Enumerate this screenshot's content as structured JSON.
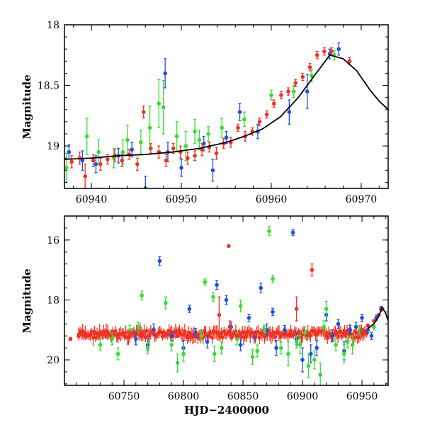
{
  "chart_data": [
    {
      "type": "scatter",
      "panel": "top",
      "title": "",
      "xlabel": "",
      "ylabel": "Magnitude",
      "xlim": [
        60937,
        60973
      ],
      "ylim": [
        19.35,
        18.0
      ],
      "y_inverted": true,
      "xticks": [
        "60940",
        "60950",
        "60960",
        "60970"
      ],
      "xtick_values": [
        60940,
        60950,
        60960,
        60970
      ],
      "yticks": [
        "18",
        "18.5",
        "19"
      ],
      "ytick_values": [
        18.0,
        18.5,
        19.0
      ],
      "model_curve": {
        "color": "#000000",
        "x": [
          60937,
          60940,
          60943,
          60946,
          60949,
          60952,
          60955,
          60957,
          60959,
          60961,
          60963,
          60965,
          60966.5,
          60968,
          60969.5,
          60971,
          60972,
          60973
        ],
        "y": [
          19.11,
          19.1,
          19.08,
          19.07,
          19.05,
          19.02,
          18.97,
          18.92,
          18.86,
          18.76,
          18.6,
          18.4,
          18.25,
          18.28,
          18.38,
          18.54,
          18.63,
          18.7
        ]
      },
      "series": [
        {
          "name": "blue",
          "color": "#1f4fe0",
          "x": [
            60937.5,
            60939,
            60940.5,
            60943,
            60944.5,
            60946,
            60948.5,
            60950,
            60952.5,
            60953.5,
            60955,
            60956.5,
            60958.5,
            60962,
            60964,
            60966.5,
            60967.5,
            60948.2
          ],
          "y": [
            19.05,
            19.12,
            19.15,
            19.08,
            19.03,
            19.35,
            19.05,
            19.18,
            18.98,
            19.2,
            18.93,
            18.72,
            18.88,
            18.72,
            18.55,
            18.24,
            18.2,
            18.4
          ],
          "err": [
            0.06,
            0.08,
            0.07,
            0.06,
            0.06,
            0.1,
            0.08,
            0.07,
            0.06,
            0.09,
            0.05,
            0.07,
            0.06,
            0.1,
            0.14,
            0.04,
            0.05,
            0.12
          ]
        },
        {
          "name": "green",
          "color": "#33dd33",
          "x": [
            60937.2,
            60939.5,
            60940.8,
            60942.5,
            60943.5,
            60945.5,
            60946.5,
            60947.5,
            60948,
            60949.5,
            60950.5,
            60951.5,
            60953,
            60954.5,
            60957,
            60960,
            60962.5,
            60964.5,
            60967,
            60952,
            60944
          ],
          "y": [
            19.18,
            18.92,
            19.05,
            19.1,
            19.05,
            18.97,
            18.85,
            18.65,
            18.68,
            18.92,
            19.0,
            18.88,
            18.9,
            18.85,
            18.78,
            18.58,
            18.55,
            18.42,
            18.25,
            18.95,
            18.95
          ],
          "err": [
            0.12,
            0.15,
            0.1,
            0.08,
            0.1,
            0.1,
            0.18,
            0.2,
            0.22,
            0.12,
            0.12,
            0.1,
            0.06,
            0.08,
            0.06,
            0.04,
            0.05,
            0.05,
            0.04,
            0.08,
            0.12
          ]
        },
        {
          "name": "red",
          "color": "#ee3322",
          "x": [
            60937.8,
            60938.7,
            60939.3,
            60940.2,
            60941,
            60941.8,
            60942.6,
            60943.4,
            60944.2,
            60945.1,
            60945.8,
            60946.6,
            60947.5,
            60948.3,
            60949.1,
            60949.9,
            60950.7,
            60951.5,
            60952.3,
            60953.1,
            60953.9,
            60954.7,
            60955.5,
            60956.3,
            60957.1,
            60957.9,
            60958.7,
            60959.5,
            60960.3,
            60961.1,
            60961.9,
            60962.7,
            60963.5,
            60964.3,
            60965.1,
            60965.9,
            60966.7,
            60968.7
          ],
          "y": [
            19.13,
            19.1,
            19.25,
            19.12,
            19.15,
            19.11,
            19.08,
            19.12,
            19.07,
            19.15,
            18.72,
            19.02,
            19.05,
            19.12,
            19.02,
            19.05,
            19.1,
            19.08,
            19.03,
            19.01,
            19.06,
            18.98,
            18.97,
            18.85,
            18.92,
            18.88,
            18.8,
            18.74,
            18.65,
            18.58,
            18.55,
            18.48,
            18.43,
            18.35,
            18.25,
            18.22,
            18.22,
            18.3
          ],
          "err": [
            0.05,
            0.05,
            0.1,
            0.05,
            0.05,
            0.04,
            0.05,
            0.05,
            0.04,
            0.05,
            0.05,
            0.04,
            0.05,
            0.05,
            0.04,
            0.05,
            0.05,
            0.04,
            0.05,
            0.04,
            0.05,
            0.04,
            0.04,
            0.03,
            0.04,
            0.03,
            0.03,
            0.03,
            0.03,
            0.03,
            0.03,
            0.03,
            0.03,
            0.03,
            0.03,
            0.03,
            0.03,
            0.03
          ]
        }
      ]
    },
    {
      "type": "scatter",
      "panel": "bottom",
      "title": "",
      "xlabel": "HJD−2400000",
      "ylabel": "Magnitude",
      "xlim": [
        60700,
        60972
      ],
      "ylim": [
        20.85,
        15.2
      ],
      "y_inverted": true,
      "xticks": [
        "60750",
        "60800",
        "60850",
        "60900",
        "60950"
      ],
      "xtick_values": [
        60750,
        60800,
        60850,
        60900,
        60950
      ],
      "yticks": [
        "16",
        "18",
        "20"
      ],
      "ytick_values": [
        16,
        18,
        20
      ],
      "model_curve": {
        "color": "#000000",
        "x": [
          60955,
          60960,
          60964,
          60967,
          60970,
          60972
        ],
        "y": [
          18.95,
          18.8,
          18.55,
          18.25,
          18.45,
          18.7
        ]
      },
      "series": [
        {
          "name": "blue",
          "color": "#1f4fe0",
          "x": [
            60780,
            60805,
            60828,
            60855,
            60865,
            60875,
            60892,
            60900,
            60907,
            60920,
            60930,
            60940,
            60950,
            60955,
            60962,
            60966,
            60760,
            60770,
            60790,
            60810,
            60820,
            60840,
            60848,
            60860,
            60878,
            60885,
            60895,
            60912,
            60925,
            60935,
            60945,
            60958,
            60775,
            60800,
            60836,
            60870
          ],
          "y": [
            16.7,
            18.3,
            17.5,
            18.6,
            17.6,
            18.4,
            15.75,
            20.0,
            19.8,
            18.5,
            18.8,
            19.0,
            18.6,
            19.0,
            18.6,
            18.3,
            19.3,
            19.5,
            19.2,
            19.1,
            19.4,
            18.9,
            19.5,
            19.2,
            19.6,
            19.0,
            19.3,
            19.6,
            19.2,
            19.7,
            18.9,
            19.2,
            19.0,
            19.6,
            18.0,
            19.0
          ],
          "err": [
            0.15,
            0.12,
            0.15,
            0.12,
            0.15,
            0.12,
            0.1,
            0.4,
            0.3,
            0.2,
            0.15,
            0.15,
            0.12,
            0.1,
            0.1,
            0.08,
            0.2,
            0.2,
            0.15,
            0.15,
            0.2,
            0.15,
            0.2,
            0.15,
            0.25,
            0.15,
            0.2,
            0.25,
            0.2,
            0.3,
            0.15,
            0.12,
            0.2,
            0.25,
            0.15,
            0.2
          ]
        },
        {
          "name": "green",
          "color": "#33dd33",
          "x": [
            60765,
            60785,
            60818,
            60825,
            60848,
            60872,
            60875,
            60888,
            60898,
            60905,
            60915,
            60920,
            60935,
            60942,
            60730,
            60745,
            60755,
            60770,
            60790,
            60800,
            60815,
            60832,
            60845,
            60858,
            60868,
            60882,
            60895,
            60910,
            60918,
            60928,
            60948,
            60960,
            60740,
            60762,
            60795,
            60826,
            60862,
            60902,
            60938
          ],
          "y": [
            17.85,
            18.1,
            17.4,
            17.9,
            18.2,
            15.7,
            17.3,
            19.8,
            19.5,
            20.2,
            20.5,
            18.3,
            19.8,
            19.5,
            19.5,
            19.8,
            19.0,
            19.6,
            19.5,
            19.8,
            19.2,
            19.6,
            19.3,
            19.9,
            19.0,
            19.6,
            19.4,
            20.0,
            18.9,
            19.5,
            19.0,
            18.9,
            19.3,
            18.9,
            20.1,
            19.8,
            19.7,
            19.1,
            19.4
          ],
          "err": [
            0.15,
            0.2,
            0.1,
            0.15,
            0.2,
            0.15,
            0.12,
            0.4,
            0.3,
            0.4,
            0.4,
            0.25,
            0.3,
            0.3,
            0.2,
            0.2,
            0.15,
            0.2,
            0.2,
            0.25,
            0.15,
            0.2,
            0.2,
            0.25,
            0.15,
            0.2,
            0.2,
            0.3,
            0.2,
            0.2,
            0.15,
            0.1,
            0.2,
            0.15,
            0.3,
            0.25,
            0.2,
            0.2,
            0.2
          ]
        },
        {
          "name": "red",
          "color": "#ee3322",
          "x": [
            60705,
            60712,
            60718,
            60725,
            60735,
            60745,
            60755,
            60765,
            60775,
            60785,
            60795,
            60805,
            60812,
            60822,
            60830,
            60838,
            60845,
            60852,
            60860,
            60868,
            60876,
            60884,
            60890,
            60897,
            60905,
            60912,
            60920,
            60928,
            60936,
            60944,
            60950,
            60955,
            60960,
            60964,
            60967,
            60839,
            60908,
            60830,
            60895
          ],
          "y": [
            19.3,
            19.2,
            19.2,
            19.1,
            19.2,
            19.15,
            19.1,
            19.2,
            19.1,
            19.15,
            19.2,
            19.1,
            19.15,
            19.2,
            19.1,
            16.2,
            19.2,
            19.1,
            19.15,
            19.2,
            19.1,
            19.15,
            19.2,
            19.1,
            19.15,
            19.1,
            19.2,
            19.1,
            19.1,
            19.05,
            19.0,
            18.85,
            18.7,
            18.5,
            18.3,
            18.9,
            17.0,
            18.5,
            18.3
          ],
          "err": [
            0.05,
            0.05,
            0.05,
            0.05,
            0.05,
            0.05,
            0.05,
            0.05,
            0.05,
            0.05,
            0.05,
            0.05,
            0.05,
            0.05,
            0.05,
            0.03,
            0.05,
            0.05,
            0.05,
            0.05,
            0.05,
            0.05,
            0.05,
            0.05,
            0.05,
            0.05,
            0.05,
            0.05,
            0.05,
            0.05,
            0.04,
            0.04,
            0.04,
            0.04,
            0.03,
            0.2,
            0.2,
            0.6,
            0.4
          ]
        }
      ],
      "red_band": {
        "color": "#ee3322",
        "x_start": 60712,
        "x_end": 60955,
        "center": 19.15,
        "half_width": 0.12
      }
    }
  ]
}
